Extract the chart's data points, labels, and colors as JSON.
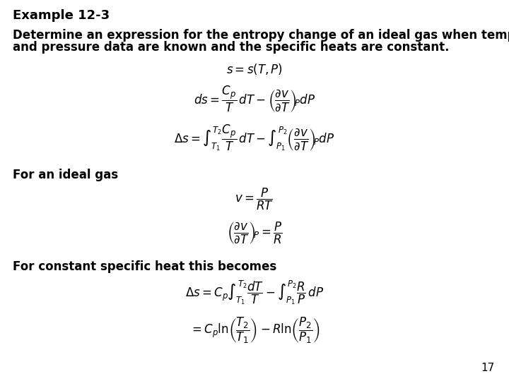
{
  "title": "Example 12-3",
  "line1": "Determine an expression for the entropy change of an ideal gas when temperature",
  "line2": "and pressure data are known and the specific heats are constant.",
  "label_ideal_gas": "For an ideal gas",
  "label_constant_heat": "For constant specific heat this becomes",
  "page_number": "17",
  "background_color": "#ffffff",
  "text_color": "#000000",
  "title_fontsize": 13,
  "body_fontsize": 12,
  "math_fontsize": 12,
  "small_label_fontsize": 12
}
